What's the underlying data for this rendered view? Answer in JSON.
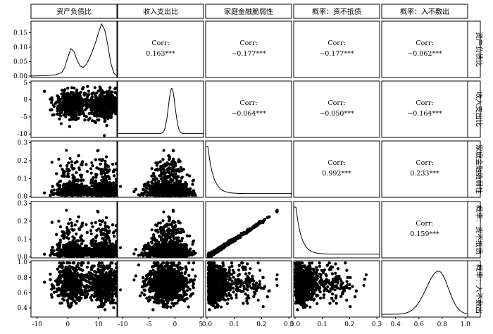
{
  "chart_data": {
    "type": "scatter-matrix",
    "variables": [
      "资产负债比",
      "收入支出比",
      "家庭金融脆弱性",
      "概率：资不抵债",
      "概率：入不敷出"
    ],
    "corr_prefix": "Corr:",
    "correlations": [
      {
        "row": 0,
        "col": 1,
        "text": "0.163***"
      },
      {
        "row": 0,
        "col": 2,
        "text": "−0.177***"
      },
      {
        "row": 0,
        "col": 3,
        "text": "−0.177***"
      },
      {
        "row": 0,
        "col": 4,
        "text": "−0.062***"
      },
      {
        "row": 1,
        "col": 2,
        "text": "−0.064***"
      },
      {
        "row": 1,
        "col": 3,
        "text": "−0.050***"
      },
      {
        "row": 1,
        "col": 4,
        "text": "−0.164***"
      },
      {
        "row": 2,
        "col": 3,
        "text": "0.992***"
      },
      {
        "row": 2,
        "col": 4,
        "text": "0.233***"
      },
      {
        "row": 3,
        "col": 4,
        "text": "0.159***"
      }
    ],
    "ranges": [
      [
        -12,
        16
      ],
      [
        -11,
        5.5
      ],
      [
        -0.005,
        0.31
      ],
      [
        -0.005,
        0.31
      ],
      [
        0.28,
        1.02
      ]
    ],
    "x_ticks": [
      {
        "values": [
          -10,
          0,
          10
        ],
        "labels": [
          "-10",
          "0",
          "10"
        ]
      },
      {
        "values": [
          -10,
          -5,
          0,
          5
        ],
        "labels": [
          "-10",
          "-5",
          "0",
          "5"
        ]
      },
      {
        "values": [
          0,
          0.1,
          0.2,
          0.3
        ],
        "labels": [
          "0.0",
          "0.1",
          "0.2",
          "0.3"
        ]
      },
      {
        "values": [
          0,
          0.1,
          0.2,
          0.3
        ],
        "labels": [
          "0.0",
          "0.1",
          "0.2",
          "0.3"
        ]
      },
      {
        "values": [
          0.4,
          0.6,
          0.8,
          1.0
        ],
        "labels": [
          "0.4",
          "0.6",
          "0.8",
          "1.0"
        ]
      }
    ],
    "y_ticks": [
      {
        "values": [
          0,
          0.05,
          0.1,
          0.15
        ],
        "labels": [
          "0.00",
          "0.05",
          "0.10",
          "0.15"
        ],
        "range": [
          -0.005,
          0.19
        ]
      },
      {
        "values": [
          -10,
          -5,
          0,
          5
        ],
        "labels": [
          "-10",
          "-5",
          "0",
          "5"
        ]
      },
      {
        "values": [
          0,
          0.1,
          0.2,
          0.3
        ],
        "labels": [
          "0.0",
          "0.1",
          "0.2",
          "0.3"
        ]
      },
      {
        "values": [
          0,
          0.1,
          0.2,
          0.3
        ],
        "labels": [
          "0.0",
          "0.1",
          "0.2",
          "0.3"
        ]
      },
      {
        "values": [
          0.4,
          0.6,
          0.8,
          1.0
        ],
        "labels": [
          "0.4",
          "0.6",
          "0.8",
          "1.0"
        ]
      }
    ],
    "density_first": {
      "x": [
        -12,
        -8,
        -4,
        -2,
        -1,
        0,
        1,
        2,
        3,
        4,
        5,
        6,
        7,
        8,
        9,
        10,
        11,
        12,
        13,
        14,
        15,
        16
      ],
      "y": [
        0,
        0.001,
        0.004,
        0.012,
        0.03,
        0.065,
        0.095,
        0.085,
        0.055,
        0.035,
        0.03,
        0.04,
        0.06,
        0.085,
        0.115,
        0.15,
        0.18,
        0.16,
        0.11,
        0.045,
        0.01,
        0
      ]
    },
    "axis_color": "#000000",
    "point_color": "#000000",
    "strip_color": "#ffffff"
  }
}
